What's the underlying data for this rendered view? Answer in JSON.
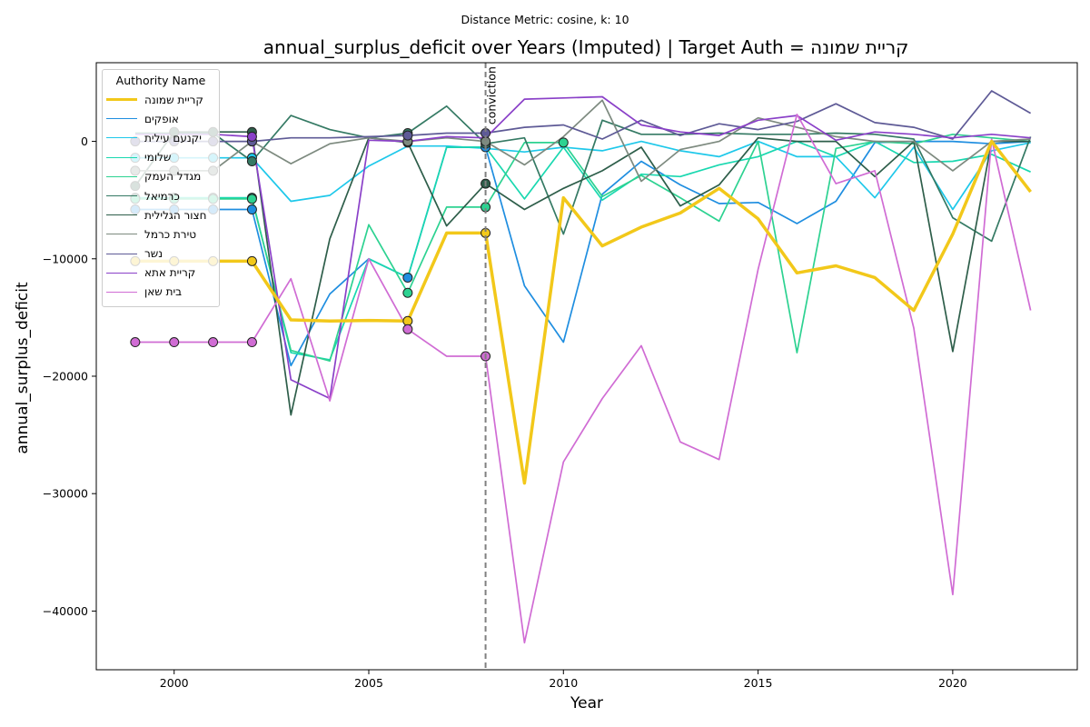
{
  "suptitle": "Distance Metric: cosine, k: 10",
  "chart_data": {
    "type": "line",
    "title": "annual_surplus_deficit over Years (Imputed) | Target Auth = קריית שמונה",
    "xlabel": "Year",
    "ylabel": "annual_surplus_deficit",
    "xlim": [
      1998,
      2023.2
    ],
    "ylim": [
      -45000,
      6700
    ],
    "xticks": [
      2000,
      2005,
      2010,
      2015,
      2020
    ],
    "yticks": [
      0,
      -10000,
      -20000,
      -30000,
      -40000
    ],
    "ytick_labels": [
      "0",
      "−10000",
      "−20000",
      "−30000",
      "−40000"
    ],
    "legend_title": "Authority Name",
    "legend_position": "top-left",
    "annotation": {
      "x": 2008,
      "label": "conviction",
      "style": "dashed vertical line"
    },
    "x": [
      1999,
      2000,
      2001,
      2002,
      2003,
      2004,
      2005,
      2006,
      2007,
      2008,
      2009,
      2010,
      2011,
      2012,
      2013,
      2014,
      2015,
      2016,
      2017,
      2018,
      2019,
      2020,
      2021,
      2022
    ],
    "series": [
      {
        "name": "קריית שמונה",
        "color": "#f2c81a",
        "target": true,
        "values": [
          -10200,
          -10200,
          -10200,
          -10200,
          -15200,
          -15300,
          -15250,
          -15300,
          -7800,
          -7800,
          -29100,
          -4800,
          -8900,
          -7300,
          -6100,
          -4000,
          -6600,
          -11200,
          -10600,
          -11600,
          -14400,
          -7900,
          0,
          -4300
        ],
        "imputed_years": [
          1999,
          2000,
          2001,
          2002,
          2006,
          2008
        ]
      },
      {
        "name": "אופקים",
        "color": "#1f8ee0",
        "values": [
          -5800,
          -5800,
          -5800,
          -5800,
          -19100,
          -13000,
          -10000,
          -11600,
          -500,
          -500,
          -12300,
          -17100,
          -4500,
          -1700,
          -3700,
          -5300,
          -5200,
          -7000,
          -5100,
          -100,
          0,
          0,
          -200,
          0
        ],
        "imputed_years": [
          1999,
          2000,
          2001,
          2002,
          2006,
          2008
        ]
      },
      {
        "name": "יקנעם עילית",
        "color": "#1ec8ea",
        "values": [
          -1400,
          -1400,
          -1400,
          -1400,
          -5100,
          -4600,
          -2100,
          -400,
          -400,
          -600,
          -900,
          -500,
          -800,
          0,
          -800,
          -1300,
          0,
          -1300,
          -1300,
          -4800,
          -500,
          -5800,
          -800,
          -100
        ],
        "imputed_years": [
          1999,
          2000,
          2001,
          2002
        ]
      },
      {
        "name": "שלומי",
        "color": "#19d8b0",
        "values": [
          -4800,
          -4800,
          -4800,
          -4800,
          -18000,
          -18600,
          -10000,
          -11600,
          -500,
          -500,
          -4900,
          -500,
          -5000,
          -2800,
          -3000,
          -2000,
          -1300,
          0,
          -1300,
          0,
          -1800,
          -1700,
          -1100,
          -2600
        ],
        "imputed_years": [
          1999,
          2000,
          2001,
          2002
        ]
      },
      {
        "name": "מגדל העמק",
        "color": "#2dd291",
        "values": [
          -4900,
          -4900,
          -4900,
          -4900,
          -17800,
          -18700,
          -7100,
          -12900,
          -5600,
          -5600,
          -100,
          -100,
          -4700,
          -2900,
          -4800,
          -6800,
          0,
          -18000,
          -600,
          0,
          -200,
          600,
          300,
          0
        ],
        "imputed_years": [
          1999,
          2000,
          2001,
          2002,
          2006,
          2008,
          2010
        ]
      },
      {
        "name": "כרמיאל",
        "color": "#357a64",
        "values": [
          700,
          700,
          700,
          -1700,
          2200,
          1000,
          300,
          700,
          3000,
          -200,
          300,
          -7900,
          1800,
          600,
          600,
          700,
          600,
          600,
          700,
          600,
          200,
          -6500,
          -8500,
          400
        ],
        "imputed_years": [
          2002,
          2006,
          2008
        ]
      },
      {
        "name": "חצור הגלילית",
        "color": "#2e5e4a",
        "values": [
          -3800,
          800,
          800,
          800,
          -23300,
          -8300,
          300,
          -100,
          -7200,
          -3600,
          -5800,
          -4000,
          -2500,
          -500,
          -5500,
          -3700,
          300,
          0,
          0,
          -3000,
          0,
          -17900,
          0,
          0
        ],
        "imputed_years": [
          1999,
          2000,
          2001,
          2002,
          2006,
          2008
        ]
      },
      {
        "name": "טירת כרמל",
        "color": "#7d8a7f",
        "values": [
          -2500,
          -2500,
          -2500,
          0,
          -1900,
          -200,
          300,
          0,
          300,
          0,
          -2000,
          400,
          3500,
          -3400,
          -700,
          0,
          2000,
          1200,
          400,
          0,
          0,
          -2500,
          0,
          200
        ],
        "imputed_years": [
          1999,
          2000,
          2001,
          2002,
          2006,
          2008
        ]
      },
      {
        "name": "נשר",
        "color": "#5e5a96",
        "values": [
          0,
          0,
          0,
          0,
          300,
          300,
          400,
          500,
          700,
          700,
          1200,
          1400,
          200,
          1800,
          500,
          1500,
          1000,
          1700,
          3200,
          1600,
          1200,
          200,
          4300,
          2400
        ],
        "imputed_years": [
          1999,
          2000,
          2001,
          2002,
          2006,
          2008
        ]
      },
      {
        "name": "קריית אתא",
        "color": "#8a40c8",
        "values": [
          600,
          600,
          600,
          400,
          -20300,
          -21900,
          100,
          0,
          400,
          300,
          3600,
          3700,
          3800,
          1400,
          800,
          500,
          1800,
          2200,
          100,
          800,
          600,
          300,
          600,
          300
        ],
        "imputed_years": [
          2002
        ]
      },
      {
        "name": "בית שאן",
        "color": "#d06cd4",
        "values": [
          -17100,
          -17100,
          -17100,
          -17100,
          -11700,
          -22100,
          -10000,
          -16000,
          -18300,
          -18300,
          -42700,
          -27300,
          -21900,
          -17400,
          -25600,
          -27100,
          -10900,
          2300,
          -3600,
          -2500,
          -15900,
          -38600,
          200,
          -14400
        ],
        "imputed_years": [
          1999,
          2000,
          2001,
          2002,
          2006,
          2008
        ]
      }
    ]
  }
}
